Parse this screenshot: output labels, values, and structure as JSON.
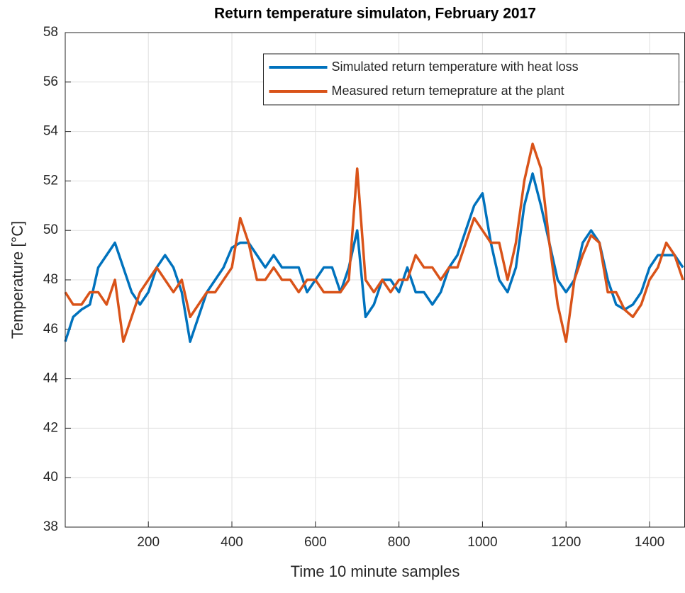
{
  "chart_data": {
    "type": "line",
    "title": "Return temperature simulaton, February 2017",
    "x_label": "Time 10 minute samples",
    "y_label": "Temperature [°C]",
    "x": [
      1,
      20,
      40,
      60,
      80,
      100,
      120,
      140,
      160,
      180,
      200,
      220,
      240,
      260,
      280,
      300,
      320,
      340,
      360,
      380,
      400,
      420,
      440,
      460,
      480,
      500,
      520,
      540,
      560,
      580,
      600,
      620,
      640,
      660,
      680,
      700,
      720,
      740,
      760,
      780,
      800,
      820,
      840,
      860,
      880,
      900,
      920,
      940,
      960,
      980,
      1000,
      1020,
      1040,
      1060,
      1080,
      1100,
      1120,
      1140,
      1160,
      1180,
      1200,
      1220,
      1240,
      1260,
      1280,
      1300,
      1320,
      1340,
      1360,
      1380,
      1400,
      1420,
      1440,
      1460,
      1480
    ],
    "series": [
      {
        "name": "Simulated return temperature with heat loss",
        "color": "#0072bd",
        "values": [
          45.5,
          46.5,
          46.8,
          47,
          48.5,
          49,
          49.5,
          48.5,
          47.5,
          47,
          47.5,
          48.5,
          49,
          48.5,
          47.5,
          45.5,
          46.5,
          47.5,
          48,
          48.5,
          49.3,
          49.5,
          49.5,
          49,
          48.5,
          49,
          48.5,
          48.5,
          48.5,
          47.5,
          48,
          48.5,
          48.5,
          47.5,
          48.5,
          50,
          46.5,
          47,
          48,
          48,
          47.5,
          48.5,
          47.5,
          47.5,
          47,
          47.5,
          48.5,
          49,
          50,
          51,
          51.5,
          49.5,
          48,
          47.5,
          48.5,
          51,
          52.3,
          51,
          49.5,
          48,
          47.5,
          48,
          49.5,
          50,
          49.5,
          48,
          47,
          46.8,
          47,
          47.5,
          48.5,
          49,
          49,
          49,
          48.5
        ]
      },
      {
        "name": "Measured return temeprature at the plant",
        "color": "#d95319",
        "values": [
          47.5,
          47,
          47,
          47.5,
          47.5,
          47,
          48,
          45.5,
          46.5,
          47.5,
          48,
          48.5,
          48,
          47.5,
          48,
          46.5,
          47,
          47.5,
          47.5,
          48,
          48.5,
          50.5,
          49.5,
          48,
          48,
          48.5,
          48,
          48,
          47.5,
          48,
          48,
          47.5,
          47.5,
          47.5,
          48,
          52.5,
          48,
          47.5,
          48,
          47.5,
          48,
          48,
          49,
          48.5,
          48.5,
          48,
          48.5,
          48.5,
          49.5,
          50.5,
          50,
          49.5,
          49.5,
          48,
          49.5,
          52,
          53.5,
          52.5,
          49.5,
          47,
          45.5,
          48,
          49,
          49.8,
          49.5,
          47.5,
          47.5,
          46.8,
          46.5,
          47,
          48,
          48.5,
          49.5,
          49,
          48
        ]
      }
    ],
    "xlim": [
      1,
      1484
    ],
    "ylim": [
      38,
      58
    ],
    "xticks": [
      200,
      400,
      600,
      800,
      1000,
      1200,
      1400
    ],
    "yticks": [
      38,
      40,
      42,
      44,
      46,
      48,
      50,
      52,
      54,
      56,
      58
    ],
    "grid": true,
    "legend": "top-right"
  }
}
